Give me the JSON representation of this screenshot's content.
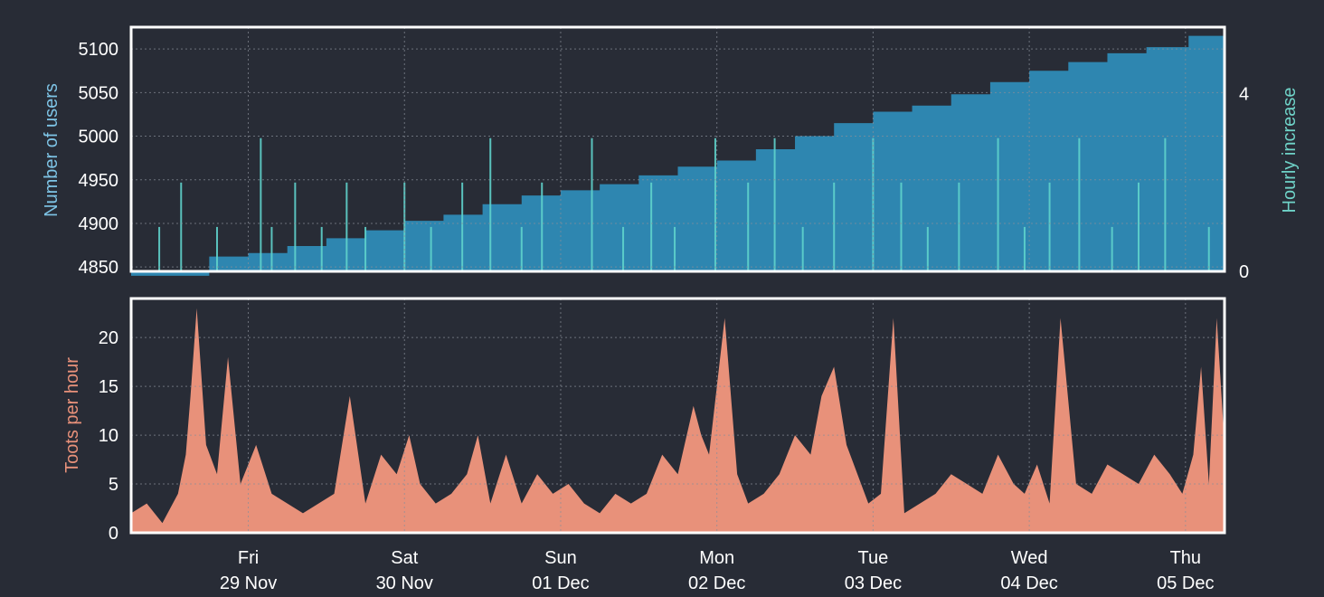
{
  "colors": {
    "background": "#282c36",
    "users_area": "#2e86b0",
    "users_label": "#7ec4e6",
    "hourly_bars": "#5fd3cc",
    "hourly_label": "#6fd3c8",
    "toots_area": "#e8917a",
    "toots_label": "#e8917a",
    "frame": "#ffffff"
  },
  "chart_data": [
    {
      "type": "area",
      "ylabel": "Number of users",
      "ylim": [
        4845,
        5125
      ],
      "yticks": [
        4850,
        4900,
        4950,
        5000,
        5050,
        5100
      ],
      "grid": true,
      "series": [
        {
          "values_note_x_unit": "day",
          "x": [
            0,
            0.5,
            0.75,
            1,
            1.25,
            1.5,
            1.75,
            2,
            2.25,
            2.5,
            2.75,
            3,
            3.25,
            3.5,
            3.75,
            4,
            4.25,
            4.5,
            4.75,
            5,
            5.25,
            5.5,
            5.75,
            6,
            6.25,
            6.5,
            6.77,
            7
          ],
          "y": [
            4840,
            4862,
            4866,
            4874,
            4883,
            4892,
            4903,
            4910,
            4922,
            4932,
            4938,
            4945,
            4955,
            4965,
            4972,
            4985,
            5000,
            5015,
            5028,
            5035,
            5048,
            5062,
            5075,
            5085,
            5095,
            5102,
            5115,
            5122
          ]
        }
      ]
    },
    {
      "type": "bar",
      "ylabel": "Hourly increase",
      "ylim": [
        0,
        5.5
      ],
      "yticks": [
        0,
        4
      ],
      "axis": "right",
      "series": [
        {
          "x": [
            0.18,
            0.32,
            0.55,
            0.83,
            0.9,
            1.05,
            1.22,
            1.38,
            1.5,
            1.75,
            1.92,
            2.12,
            2.3,
            2.5,
            2.63,
            2.95,
            3.15,
            3.33,
            3.48,
            3.74,
            3.95,
            4.12,
            4.3,
            4.5,
            4.75,
            4.93,
            5.1,
            5.3,
            5.55,
            5.72,
            5.88,
            6.07,
            6.28,
            6.45,
            6.62,
            6.9
          ],
          "y": [
            1,
            2,
            1,
            3,
            1,
            2,
            1,
            2,
            1,
            2,
            1,
            2,
            3,
            1,
            2,
            3,
            1,
            2,
            1,
            3,
            2,
            3,
            1,
            2,
            3,
            2,
            1,
            2,
            3,
            1,
            2,
            3,
            1,
            2,
            3,
            1
          ]
        }
      ]
    },
    {
      "type": "area",
      "ylabel": "Toots per hour",
      "ylim": [
        0,
        24
      ],
      "yticks": [
        0,
        5,
        10,
        15,
        20
      ],
      "grid": true,
      "xticks": [
        {
          "x": 0.75,
          "day": "Fri",
          "date": "29 Nov"
        },
        {
          "x": 1.75,
          "day": "Sat",
          "date": "30 Nov"
        },
        {
          "x": 2.75,
          "day": "Sun",
          "date": "01 Dec"
        },
        {
          "x": 3.75,
          "day": "Mon",
          "date": "02 Dec"
        },
        {
          "x": 4.75,
          "day": "Tue",
          "date": "03 Dec"
        },
        {
          "x": 5.75,
          "day": "Wed",
          "date": "04 Dec"
        },
        {
          "x": 6.75,
          "day": "Thu",
          "date": "05 Dec"
        }
      ],
      "series": [
        {
          "x": [
            0,
            0.1,
            0.2,
            0.3,
            0.35,
            0.38,
            0.42,
            0.48,
            0.55,
            0.62,
            0.7,
            0.8,
            0.9,
            1.0,
            1.1,
            1.2,
            1.3,
            1.4,
            1.5,
            1.6,
            1.7,
            1.78,
            1.85,
            1.95,
            2.05,
            2.15,
            2.22,
            2.3,
            2.4,
            2.5,
            2.6,
            2.7,
            2.8,
            2.9,
            3.0,
            3.1,
            3.2,
            3.3,
            3.4,
            3.5,
            3.6,
            3.65,
            3.7,
            3.8,
            3.88,
            3.95,
            4.05,
            4.15,
            4.25,
            4.35,
            4.42,
            4.5,
            4.58,
            4.65,
            4.72,
            4.8,
            4.88,
            4.95,
            5.05,
            5.15,
            5.25,
            5.35,
            5.45,
            5.55,
            5.65,
            5.72,
            5.8,
            5.88,
            5.95,
            6.05,
            6.15,
            6.25,
            6.35,
            6.45,
            6.55,
            6.65,
            6.73,
            6.8,
            6.85,
            6.9,
            6.95,
            7.0
          ],
          "y": [
            2,
            3,
            1,
            4,
            8,
            14,
            23,
            9,
            6,
            18,
            5,
            9,
            4,
            3,
            2,
            3,
            4,
            14,
            3,
            8,
            6,
            10,
            5,
            3,
            4,
            6,
            10,
            3,
            8,
            3,
            6,
            4,
            5,
            3,
            2,
            4,
            3,
            4,
            8,
            6,
            13,
            10,
            8,
            22,
            6,
            3,
            4,
            6,
            10,
            8,
            14,
            17,
            9,
            6,
            3,
            4,
            22,
            2,
            3,
            4,
            6,
            5,
            4,
            8,
            5,
            4,
            7,
            3,
            22,
            5,
            4,
            7,
            6,
            5,
            8,
            6,
            4,
            8,
            17,
            5,
            22,
            9
          ]
        }
      ]
    }
  ]
}
